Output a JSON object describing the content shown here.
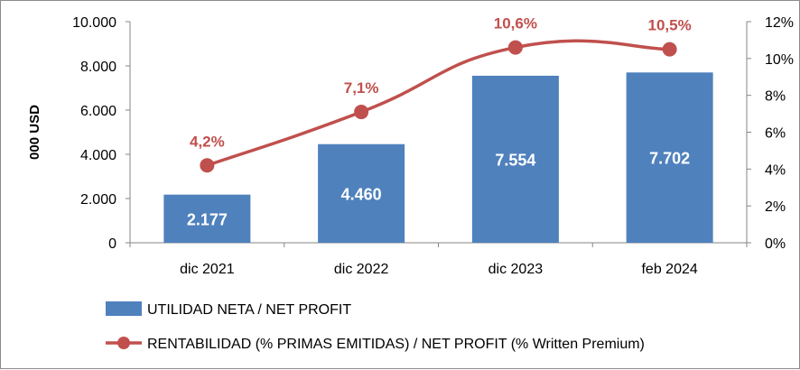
{
  "chart_data": {
    "type": "bar",
    "categories": [
      "dic 2021",
      "dic 2022",
      "dic 2023",
      "feb 2024"
    ],
    "ylabel": "000 USD",
    "ylim": [
      0,
      10000
    ],
    "y_ticks": [
      "0",
      "2.000",
      "4.000",
      "6.000",
      "8.000",
      "10.000"
    ],
    "y2lim": [
      0,
      12
    ],
    "y2_ticks": [
      "0%",
      "2%",
      "4%",
      "6%",
      "8%",
      "10%",
      "12%"
    ],
    "grid": false,
    "legend_position": "bottom",
    "series": [
      {
        "name": "UTILIDAD NETA / NET PROFIT",
        "type": "bar",
        "axis": "left",
        "values": [
          2177,
          4460,
          7554,
          7702
        ],
        "labels": [
          "2.177",
          "4.460",
          "7.554",
          "7.702"
        ],
        "color": "#4f81bd"
      },
      {
        "name": "RENTABILIDAD (% PRIMAS EMITIDAS) / NET PROFIT (% Written Premium)",
        "type": "line",
        "axis": "right",
        "values": [
          4.2,
          7.1,
          10.6,
          10.5
        ],
        "labels": [
          "4,2%",
          "7,1%",
          "10,6%",
          "10,5%"
        ],
        "color": "#c0504d"
      }
    ]
  }
}
